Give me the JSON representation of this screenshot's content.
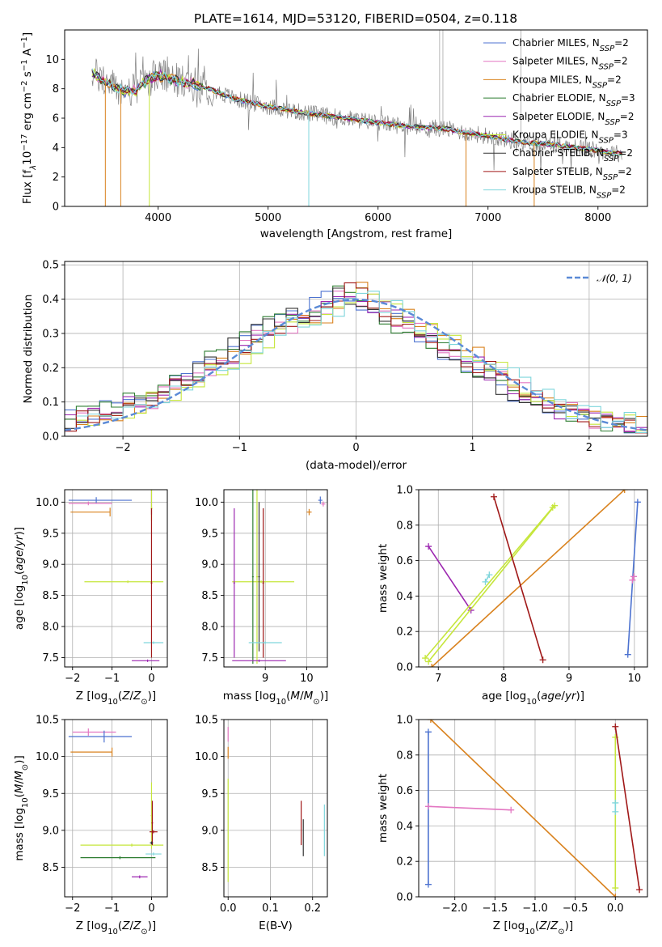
{
  "chart_data": [
    {
      "id": "spectrum",
      "type": "line",
      "title": "PLATE=1614, MJD=53120, FIBERID=0504, z=0.118",
      "xlabel": "wavelength [Angstrom, rest frame]",
      "ylabel": "Flux [f$_\\lambda$10$^{-17}$ erg cm$^{-2}$ s$^{-1}$ A$^{-1}$]",
      "ylabel_parts": [
        "Flux [f",
        "λ",
        "10",
        "−17",
        " erg cm",
        "−2",
        " s",
        "−1",
        " A",
        "−1",
        "]"
      ],
      "xlim": [
        3150,
        8450
      ],
      "ylim": [
        0,
        12
      ],
      "xticks": [
        "4000",
        "5000",
        "6000",
        "7000",
        "8000"
      ],
      "yticks": [
        "0",
        "2",
        "4",
        "6",
        "8",
        "10"
      ],
      "legend_position": "upper right",
      "series": [
        {
          "name": "Chabrier MILES, N$_{SSP}$=2",
          "label_main": "Chabrier MILES, N",
          "label_sub": "SSP",
          "label_tail": "=2",
          "color": "#4c72d0"
        },
        {
          "name": "Salpeter MILES, N$_{SSP}$=2",
          "label_main": "Salpeter MILES, N",
          "label_sub": "SSP",
          "label_tail": "=2",
          "color": "#e377c2"
        },
        {
          "name": "Kroupa MILES, N$_{SSP}$=2",
          "label_main": "Kroupa MILES, N",
          "label_sub": "SSP",
          "label_tail": "=2",
          "color": "#d9821e"
        },
        {
          "name": "Chabrier ELODIE, N$_{SSP}$=3",
          "label_main": "Chabrier ELODIE, N",
          "label_sub": "SSP",
          "label_tail": "=3",
          "color": "#2e7d32"
        },
        {
          "name": "Salpeter ELODIE, N$_{SSP}$=2",
          "label_main": "Salpeter ELODIE, N",
          "label_sub": "SSP",
          "label_tail": "=2",
          "color": "#9c27b0"
        },
        {
          "name": "Kroupa ELODIE, N$_{SSP}$=3",
          "label_main": "Kroupa ELODIE, N",
          "label_sub": "SSP",
          "label_tail": "=3",
          "color": "#c6e63c"
        },
        {
          "name": "Chabrier STELIB, N$_{SSP}$=2",
          "label_main": "Chabrier STELIB, N",
          "label_sub": "SSP",
          "label_tail": "=2",
          "color": "#333333"
        },
        {
          "name": "Salpeter STELIB, N$_{SSP}$=2",
          "label_main": "Salpeter STELIB, N",
          "label_sub": "SSP",
          "label_tail": "=2",
          "color": "#a01818"
        },
        {
          "name": "Kroupa STELIB, N$_{SSP}$=2",
          "label_main": "Kroupa STELIB, N",
          "label_sub": "SSP",
          "label_tail": "=2",
          "color": "#7fd6dc"
        }
      ],
      "continuum": {
        "x": [
          3400,
          3500,
          3600,
          3700,
          3800,
          3900,
          4000,
          4100,
          4200,
          4300,
          4500,
          4700,
          5000,
          5300,
          5600,
          6000,
          6300,
          6600,
          6800,
          7000,
          7200,
          7400,
          7600,
          7800,
          8000,
          8200
        ],
        "y": [
          9.1,
          8.6,
          8.1,
          7.8,
          7.9,
          8.6,
          8.9,
          8.7,
          8.5,
          8.4,
          7.9,
          7.3,
          6.8,
          6.4,
          6.1,
          5.7,
          5.4,
          5.3,
          5.0,
          4.8,
          4.5,
          4.3,
          4.2,
          4.0,
          3.8,
          3.6
        ]
      }
    },
    {
      "id": "residuals",
      "type": "histogram",
      "xlabel": "(data-model)/error",
      "ylabel": "Normed distribution",
      "xlim": [
        -2.5,
        2.5
      ],
      "ylim": [
        0,
        0.51
      ],
      "xticks": [
        "−2",
        "−1",
        "0",
        "1",
        "2"
      ],
      "yticks": [
        "0.0",
        "0.1",
        "0.2",
        "0.3",
        "0.4",
        "0.5"
      ],
      "legend": "$\\mathcal{N}(0,1)$",
      "legend_display": "𝒩(0, 1)",
      "gaussian_color": "#5b8ad6",
      "bin_edges_start": -2.5,
      "bin_width": 0.1,
      "base_shape": [
        0.04,
        0.05,
        0.06,
        0.07,
        0.08,
        0.09,
        0.1,
        0.11,
        0.12,
        0.14,
        0.16,
        0.18,
        0.2,
        0.22,
        0.24,
        0.26,
        0.28,
        0.3,
        0.32,
        0.33,
        0.35,
        0.36,
        0.38,
        0.4,
        0.42,
        0.41,
        0.39,
        0.37,
        0.35,
        0.33,
        0.31,
        0.29,
        0.27,
        0.25,
        0.23,
        0.21,
        0.19,
        0.17,
        0.15,
        0.13,
        0.11,
        0.1,
        0.08,
        0.07,
        0.06,
        0.05,
        0.04,
        0.04,
        0.03,
        0.03
      ]
    },
    {
      "id": "age-vs-Z",
      "type": "errorbar",
      "xlabel": "Z [log$_{10}$(Z/Z$_\\odot$)]",
      "ylabel": "age  [log$_{10}$(age/yr)]",
      "xlim": [
        -2.2,
        0.4
      ],
      "ylim": [
        7.35,
        10.2
      ],
      "xticks": [
        "−2",
        "−1",
        "0"
      ],
      "yticks": [
        "7.5",
        "8.0",
        "8.5",
        "9.0",
        "9.5",
        "10.0"
      ],
      "points": [
        {
          "x": -1.4,
          "y": 10.03,
          "xerr": [
            0.7,
            0.9
          ],
          "yerr": [
            0.05,
            0.05
          ],
          "color": "#4c72d0"
        },
        {
          "x": -1.6,
          "y": 9.98,
          "xerr": [
            0.5,
            0.6
          ],
          "yerr": [
            0.03,
            0.03
          ],
          "color": "#e377c2"
        },
        {
          "x": -1.05,
          "y": 9.84,
          "xerr": [
            1.0,
            0.0
          ],
          "yerr": [
            0.07,
            0.07
          ],
          "color": "#d9821e"
        },
        {
          "x": 0.0,
          "y": 9.9,
          "xerr": [
            0.02,
            0.02
          ],
          "yerr": [
            0.1,
            0.3
          ],
          "color": "#9c27b0"
        },
        {
          "x": 0.0,
          "y": 9.9,
          "xerr": [
            0.02,
            0.02
          ],
          "yerr": [
            0.2,
            0.3
          ],
          "color": "#c6e63c"
        },
        {
          "x": -0.6,
          "y": 8.72,
          "xerr": [
            1.1,
            0.9
          ],
          "yerr": [
            0.02,
            0.02
          ],
          "color": "#c6e63c"
        },
        {
          "x": 0.05,
          "y": 7.74,
          "xerr": [
            0.25,
            0.25
          ],
          "yerr": [
            0.02,
            0.02
          ],
          "color": "#7fd6dc"
        },
        {
          "x": -0.1,
          "y": 7.45,
          "xerr": [
            0.4,
            0.3
          ],
          "yerr": [
            0.02,
            0.02
          ],
          "color": "#9c27b0"
        },
        {
          "x": 0.0,
          "y": 8.7,
          "xerr": [
            0.02,
            0.02
          ],
          "yerr": [
            1.2,
            1.2
          ],
          "color": "#a01818"
        }
      ]
    },
    {
      "id": "age-vs-mass",
      "type": "errorbar",
      "xlabel": "mass [log$_{10}$(M/M$_\\odot$)]",
      "xlim": [
        8.0,
        10.5
      ],
      "ylim": [
        7.35,
        10.2
      ],
      "xticks": [
        "9",
        "10"
      ],
      "yticks": [
        "7.5",
        "8.0",
        "8.5",
        "9.0",
        "9.5",
        "10.0"
      ],
      "points": [
        {
          "x": 10.33,
          "y": 10.03,
          "xerr": [
            0.05,
            0.05
          ],
          "yerr": [
            0.06,
            0.06
          ],
          "color": "#4c72d0"
        },
        {
          "x": 10.4,
          "y": 9.97,
          "xerr": [
            0.05,
            0.05
          ],
          "yerr": [
            0.04,
            0.04
          ],
          "color": "#e377c2"
        },
        {
          "x": 10.06,
          "y": 9.84,
          "xerr": [
            0.06,
            0.06
          ],
          "yerr": [
            0.05,
            0.05
          ],
          "color": "#d9821e"
        },
        {
          "x": 8.9,
          "y": 8.72,
          "xerr": [
            0.7,
            0.8
          ],
          "yerr": [
            0.02,
            0.02
          ],
          "color": "#c6e63c"
        },
        {
          "x": 8.7,
          "y": 8.8,
          "xerr": [
            0.02,
            0.02
          ],
          "yerr": [
            1.4,
            1.4
          ],
          "color": "#2e7d32"
        },
        {
          "x": 8.25,
          "y": 8.7,
          "xerr": [
            0.02,
            0.02
          ],
          "yerr": [
            1.2,
            1.2
          ],
          "color": "#9c27b0"
        },
        {
          "x": 8.95,
          "y": 8.7,
          "xerr": [
            0.02,
            0.02
          ],
          "yerr": [
            1.2,
            1.2
          ],
          "color": "#a01818"
        },
        {
          "x": 8.85,
          "y": 8.8,
          "xerr": [
            0.02,
            0.02
          ],
          "yerr": [
            1.2,
            1.2
          ],
          "color": "#333333"
        },
        {
          "x": 8.8,
          "y": 8.8,
          "xerr": [
            0.02,
            0.02
          ],
          "yerr": [
            1.4,
            1.4
          ],
          "color": "#c6e63c"
        },
        {
          "x": 9.0,
          "y": 7.74,
          "xerr": [
            0.4,
            0.4
          ],
          "yerr": [
            0.02,
            0.02
          ],
          "color": "#7fd6dc"
        },
        {
          "x": 8.85,
          "y": 7.45,
          "xerr": [
            0.65,
            0.65
          ],
          "yerr": [
            0.02,
            0.02
          ],
          "color": "#9c27b0"
        }
      ]
    },
    {
      "id": "weight-vs-age",
      "type": "line",
      "xlabel": "age  [log$_{10}$(age/yr)]",
      "ylabel": "mass weight",
      "xlim": [
        6.7,
        10.2
      ],
      "ylim": [
        0,
        1.0
      ],
      "xticks": [
        "7",
        "8",
        "9",
        "10"
      ],
      "yticks": [
        "0.0",
        "0.2",
        "0.4",
        "0.6",
        "0.8",
        "1.0"
      ],
      "series": [
        {
          "color": "#4c72d0",
          "x": [
            9.9,
            10.05
          ],
          "y": [
            0.07,
            0.93
          ]
        },
        {
          "color": "#e377c2",
          "x": [
            9.97,
            9.99
          ],
          "y": [
            0.49,
            0.51
          ]
        },
        {
          "color": "#d9821e",
          "x": [
            6.9,
            9.85
          ],
          "y": [
            0.0,
            1.0
          ]
        },
        {
          "color": "#9c27b0",
          "x": [
            6.85,
            7.5
          ],
          "y": [
            0.68,
            0.32
          ]
        },
        {
          "color": "#c6e63c",
          "x": [
            6.8,
            8.75
          ],
          "y": [
            0.05,
            0.9
          ]
        },
        {
          "color": "#c6e63c",
          "x": [
            6.85,
            8.78
          ],
          "y": [
            0.03,
            0.91
          ]
        },
        {
          "color": "#7fd6dc",
          "x": [
            7.72,
            7.78
          ],
          "y": [
            0.48,
            0.52
          ]
        },
        {
          "color": "#a01818",
          "x": [
            7.85,
            8.6
          ],
          "y": [
            0.96,
            0.04
          ]
        }
      ]
    },
    {
      "id": "mass-vs-Z",
      "type": "errorbar",
      "xlabel": "Z [log$_{10}$(Z/Z$_\\odot$)]",
      "ylabel": "mass [log$_{10}$(M/M$_\\odot$)]",
      "xlim": [
        -2.2,
        0.4
      ],
      "ylim": [
        8.1,
        10.5
      ],
      "xticks": [
        "−2",
        "−1",
        "0"
      ],
      "yticks": [
        "8.5",
        "9.0",
        "9.5",
        "10.0",
        "10.5"
      ],
      "points": [
        {
          "x": -1.6,
          "y": 10.33,
          "xerr": [
            0.4,
            0.7
          ],
          "yerr": [
            0.05,
            0.05
          ],
          "color": "#e377c2"
        },
        {
          "x": -1.2,
          "y": 10.27,
          "xerr": [
            0.9,
            0.7
          ],
          "yerr": [
            0.08,
            0.08
          ],
          "color": "#4c72d0"
        },
        {
          "x": -1.0,
          "y": 10.06,
          "xerr": [
            1.05,
            0.0
          ],
          "yerr": [
            0.06,
            0.06
          ],
          "color": "#d9821e"
        },
        {
          "x": 0.0,
          "y": 9.2,
          "xerr": [
            0.02,
            0.02
          ],
          "yerr": [
            0.45,
            0.45
          ],
          "color": "#c6e63c"
        },
        {
          "x": -0.5,
          "y": 8.8,
          "xerr": [
            1.3,
            0.8
          ],
          "yerr": [
            0.02,
            0.02
          ],
          "color": "#c6e63c"
        },
        {
          "x": -0.8,
          "y": 8.63,
          "xerr": [
            1.0,
            0.9
          ],
          "yerr": [
            0.02,
            0.02
          ],
          "color": "#2e7d32"
        },
        {
          "x": 0.05,
          "y": 8.68,
          "xerr": [
            0.2,
            0.2
          ],
          "yerr": [
            0.02,
            0.02
          ],
          "color": "#7fd6dc"
        },
        {
          "x": 0.05,
          "y": 8.98,
          "xerr": [
            0.1,
            0.1
          ],
          "yerr": [
            0.02,
            0.02
          ],
          "color": "#a01818"
        },
        {
          "x": -0.3,
          "y": 8.37,
          "xerr": [
            0.2,
            0.2
          ],
          "yerr": [
            0.02,
            0.02
          ],
          "color": "#9c27b0"
        },
        {
          "x": 0.02,
          "y": 9.1,
          "xerr": [
            0.02,
            0.02
          ],
          "yerr": [
            0.3,
            0.3
          ],
          "color": "#a01818"
        },
        {
          "x": 0.0,
          "y": 8.83,
          "xerr": [
            0.04,
            0.04
          ],
          "yerr": [
            0.02,
            0.02
          ],
          "color": "#333333"
        }
      ]
    },
    {
      "id": "mass-vs-ebv",
      "type": "errorbar",
      "xlabel": "E(B-V)",
      "xlim": [
        -0.01,
        0.235
      ],
      "ylim": [
        8.1,
        10.5
      ],
      "xticks": [
        "0.0",
        "0.1",
        "0.2"
      ],
      "yticks": [
        "8.5",
        "9.0",
        "9.5",
        "10.0",
        "10.5"
      ],
      "points": [
        {
          "x": 0.0,
          "y": 10.3,
          "xerr": [
            0.002,
            0.002
          ],
          "yerr": [
            0.1,
            0.1
          ],
          "color": "#e377c2"
        },
        {
          "x": 0.0,
          "y": 10.05,
          "xerr": [
            0.002,
            0.002
          ],
          "yerr": [
            0.08,
            0.08
          ],
          "color": "#d9821e"
        },
        {
          "x": 0.0,
          "y": 9.0,
          "xerr": [
            0.002,
            0.002
          ],
          "yerr": [
            0.7,
            0.7
          ],
          "color": "#c6e63c"
        },
        {
          "x": 0.173,
          "y": 9.1,
          "xerr": [
            0.002,
            0.002
          ],
          "yerr": [
            0.3,
            0.3
          ],
          "color": "#a01818"
        },
        {
          "x": 0.178,
          "y": 8.9,
          "xerr": [
            0.002,
            0.002
          ],
          "yerr": [
            0.25,
            0.25
          ],
          "color": "#333333"
        },
        {
          "x": 0.228,
          "y": 9.0,
          "xerr": [
            0.002,
            0.002
          ],
          "yerr": [
            0.35,
            0.35
          ],
          "color": "#7fd6dc"
        }
      ]
    },
    {
      "id": "weight-vs-Z",
      "type": "line",
      "xlabel": "Z [log$_{10}$(Z/Z$_\\odot$)]",
      "ylabel": "mass weight",
      "xlim": [
        -2.45,
        0.4
      ],
      "ylim": [
        0,
        1.0
      ],
      "xticks": [
        "−2.0",
        "−1.5",
        "−1.0",
        "−0.5",
        "0.0"
      ],
      "yticks": [
        "0.0",
        "0.2",
        "0.4",
        "0.6",
        "0.8",
        "1.0"
      ],
      "series": [
        {
          "color": "#4c72d0",
          "x": [
            -2.33,
            -2.33
          ],
          "y": [
            0.07,
            0.93
          ]
        },
        {
          "color": "#e377c2",
          "x": [
            -2.33,
            -1.3
          ],
          "y": [
            0.51,
            0.49
          ]
        },
        {
          "color": "#d9821e",
          "x": [
            -2.3,
            0.0
          ],
          "y": [
            1.0,
            0.0
          ]
        },
        {
          "color": "#c6e63c",
          "x": [
            0.0,
            0.0
          ],
          "y": [
            0.05,
            0.9
          ]
        },
        {
          "color": "#7fd6dc",
          "x": [
            0.0,
            0.0
          ],
          "y": [
            0.48,
            0.53
          ]
        },
        {
          "color": "#a01818",
          "x": [
            0.0,
            0.3
          ],
          "y": [
            0.96,
            0.04
          ]
        }
      ]
    }
  ]
}
